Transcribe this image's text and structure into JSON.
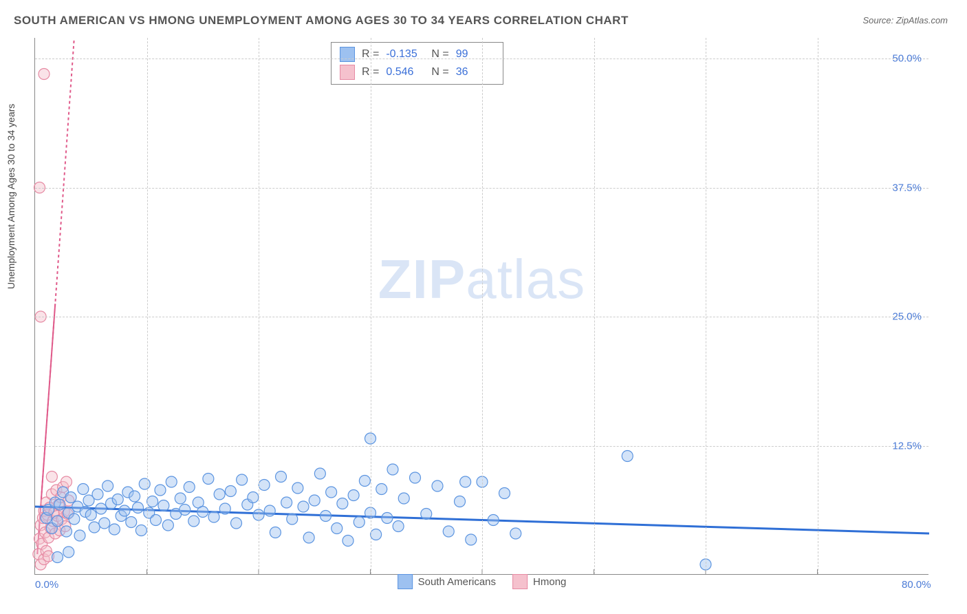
{
  "title": "SOUTH AMERICAN VS HMONG UNEMPLOYMENT AMONG AGES 30 TO 34 YEARS CORRELATION CHART",
  "source": "Source: ZipAtlas.com",
  "ylabel": "Unemployment Among Ages 30 to 34 years",
  "watermark": {
    "bold": "ZIP",
    "rest": "atlas"
  },
  "chart": {
    "type": "scatter-with-regression",
    "xlim": [
      0,
      80
    ],
    "ylim": [
      0,
      52
    ],
    "xticks": [
      {
        "value": 0,
        "label": "0.0%"
      },
      {
        "value": 80,
        "label": "80.0%"
      }
    ],
    "yticks": [
      {
        "value": 12.5,
        "label": "12.5%"
      },
      {
        "value": 25.0,
        "label": "25.0%"
      },
      {
        "value": 37.5,
        "label": "37.5%"
      },
      {
        "value": 50.0,
        "label": "50.0%"
      }
    ],
    "x_gridlines": [
      10,
      20,
      30,
      40,
      50,
      60,
      70
    ],
    "y_gridlines": [
      12.5,
      25.0,
      37.5,
      50.0
    ],
    "background_color": "#ffffff",
    "grid_color": "#cccccc",
    "axis_color": "#888888",
    "tick_color": "#4b7bd6",
    "marker_radius": 8,
    "marker_opacity": 0.45,
    "series": [
      {
        "name": "South Americans",
        "fill": "#9dc1f0",
        "stroke": "#5b94e0",
        "line_color": "#2f6fd6",
        "line_width": 3,
        "R": "-0.135",
        "N": "99",
        "regression": {
          "x1": 0,
          "y1": 6.6,
          "x2": 80,
          "y2": 4.0
        },
        "points": [
          [
            1.0,
            5.5
          ],
          [
            1.2,
            6.3
          ],
          [
            1.5,
            4.5
          ],
          [
            1.8,
            7.0
          ],
          [
            2.0,
            5.2
          ],
          [
            2.2,
            6.8
          ],
          [
            2.5,
            8.0
          ],
          [
            2.8,
            4.2
          ],
          [
            3.0,
            6.0
          ],
          [
            3.2,
            7.5
          ],
          [
            3.5,
            5.4
          ],
          [
            3.8,
            6.6
          ],
          [
            4.0,
            3.8
          ],
          [
            4.3,
            8.3
          ],
          [
            4.5,
            6.1
          ],
          [
            4.8,
            7.2
          ],
          [
            5.0,
            5.8
          ],
          [
            5.3,
            4.6
          ],
          [
            5.6,
            7.8
          ],
          [
            5.9,
            6.4
          ],
          [
            6.2,
            5.0
          ],
          [
            6.5,
            8.6
          ],
          [
            6.8,
            6.9
          ],
          [
            7.1,
            4.4
          ],
          [
            7.4,
            7.3
          ],
          [
            7.7,
            5.7
          ],
          [
            8.0,
            6.2
          ],
          [
            8.3,
            8.0
          ],
          [
            8.6,
            5.1
          ],
          [
            8.9,
            7.6
          ],
          [
            9.2,
            6.5
          ],
          [
            9.5,
            4.3
          ],
          [
            9.8,
            8.8
          ],
          [
            10.2,
            6.0
          ],
          [
            10.5,
            7.1
          ],
          [
            10.8,
            5.3
          ],
          [
            11.2,
            8.2
          ],
          [
            11.5,
            6.7
          ],
          [
            11.9,
            4.8
          ],
          [
            12.2,
            9.0
          ],
          [
            12.6,
            5.9
          ],
          [
            13.0,
            7.4
          ],
          [
            13.4,
            6.3
          ],
          [
            13.8,
            8.5
          ],
          [
            14.2,
            5.2
          ],
          [
            14.6,
            7.0
          ],
          [
            15.0,
            6.1
          ],
          [
            15.5,
            9.3
          ],
          [
            16.0,
            5.6
          ],
          [
            16.5,
            7.8
          ],
          [
            17.0,
            6.4
          ],
          [
            17.5,
            8.1
          ],
          [
            18.0,
            5.0
          ],
          [
            18.5,
            9.2
          ],
          [
            19.0,
            6.8
          ],
          [
            19.5,
            7.5
          ],
          [
            20.0,
            5.8
          ],
          [
            20.5,
            8.7
          ],
          [
            21.0,
            6.2
          ],
          [
            21.5,
            4.1
          ],
          [
            22.0,
            9.5
          ],
          [
            22.5,
            7.0
          ],
          [
            23.0,
            5.4
          ],
          [
            23.5,
            8.4
          ],
          [
            24.0,
            6.6
          ],
          [
            24.5,
            3.6
          ],
          [
            25.0,
            7.2
          ],
          [
            25.5,
            9.8
          ],
          [
            26.0,
            5.7
          ],
          [
            26.5,
            8.0
          ],
          [
            27.0,
            4.5
          ],
          [
            27.5,
            6.9
          ],
          [
            28.0,
            3.3
          ],
          [
            28.5,
            7.7
          ],
          [
            29.0,
            5.1
          ],
          [
            29.5,
            9.1
          ],
          [
            30.0,
            6.0
          ],
          [
            30.5,
            3.9
          ],
          [
            31.0,
            8.3
          ],
          [
            31.5,
            5.5
          ],
          [
            32.0,
            10.2
          ],
          [
            32.5,
            4.7
          ],
          [
            33.0,
            7.4
          ],
          [
            34.0,
            9.4
          ],
          [
            35.0,
            5.9
          ],
          [
            36.0,
            8.6
          ],
          [
            37.0,
            4.2
          ],
          [
            38.0,
            7.1
          ],
          [
            39.0,
            3.4
          ],
          [
            40.0,
            9.0
          ],
          [
            41.0,
            5.3
          ],
          [
            42.0,
            7.9
          ],
          [
            43.0,
            4.0
          ],
          [
            30.0,
            13.2
          ],
          [
            38.5,
            9.0
          ],
          [
            53.0,
            11.5
          ],
          [
            60.0,
            1.0
          ],
          [
            2.0,
            1.7
          ],
          [
            3.0,
            2.2
          ]
        ]
      },
      {
        "name": "Hmong",
        "fill": "#f5c1cd",
        "stroke": "#e68aa3",
        "line_color": "#e05a8a",
        "line_width": 2,
        "R": "0.546",
        "N": "36",
        "regression": {
          "x1": 0.2,
          "y1": 2.0,
          "x2": 3.5,
          "y2": 52.0
        },
        "points": [
          [
            0.3,
            2.0
          ],
          [
            0.4,
            3.5
          ],
          [
            0.5,
            4.8
          ],
          [
            0.6,
            3.0
          ],
          [
            0.7,
            5.5
          ],
          [
            0.8,
            6.2
          ],
          [
            0.9,
            4.1
          ],
          [
            1.0,
            7.0
          ],
          [
            1.1,
            5.8
          ],
          [
            1.2,
            3.6
          ],
          [
            1.3,
            6.5
          ],
          [
            1.4,
            4.5
          ],
          [
            1.5,
            7.8
          ],
          [
            1.6,
            5.2
          ],
          [
            1.7,
            6.0
          ],
          [
            1.8,
            4.0
          ],
          [
            1.9,
            8.2
          ],
          [
            2.0,
            5.7
          ],
          [
            2.1,
            6.8
          ],
          [
            2.2,
            4.3
          ],
          [
            2.3,
            7.5
          ],
          [
            2.4,
            5.4
          ],
          [
            2.5,
            8.5
          ],
          [
            2.6,
            6.1
          ],
          [
            2.7,
            4.7
          ],
          [
            2.8,
            9.0
          ],
          [
            2.9,
            5.9
          ],
          [
            3.0,
            7.2
          ],
          [
            0.5,
            1.0
          ],
          [
            0.8,
            1.5
          ],
          [
            1.0,
            2.3
          ],
          [
            1.2,
            1.8
          ],
          [
            0.5,
            25.0
          ],
          [
            0.4,
            37.5
          ],
          [
            0.8,
            48.5
          ],
          [
            1.5,
            9.5
          ]
        ]
      }
    ]
  },
  "legend_stats_prefix_R": "R =",
  "legend_stats_prefix_N": "N ="
}
